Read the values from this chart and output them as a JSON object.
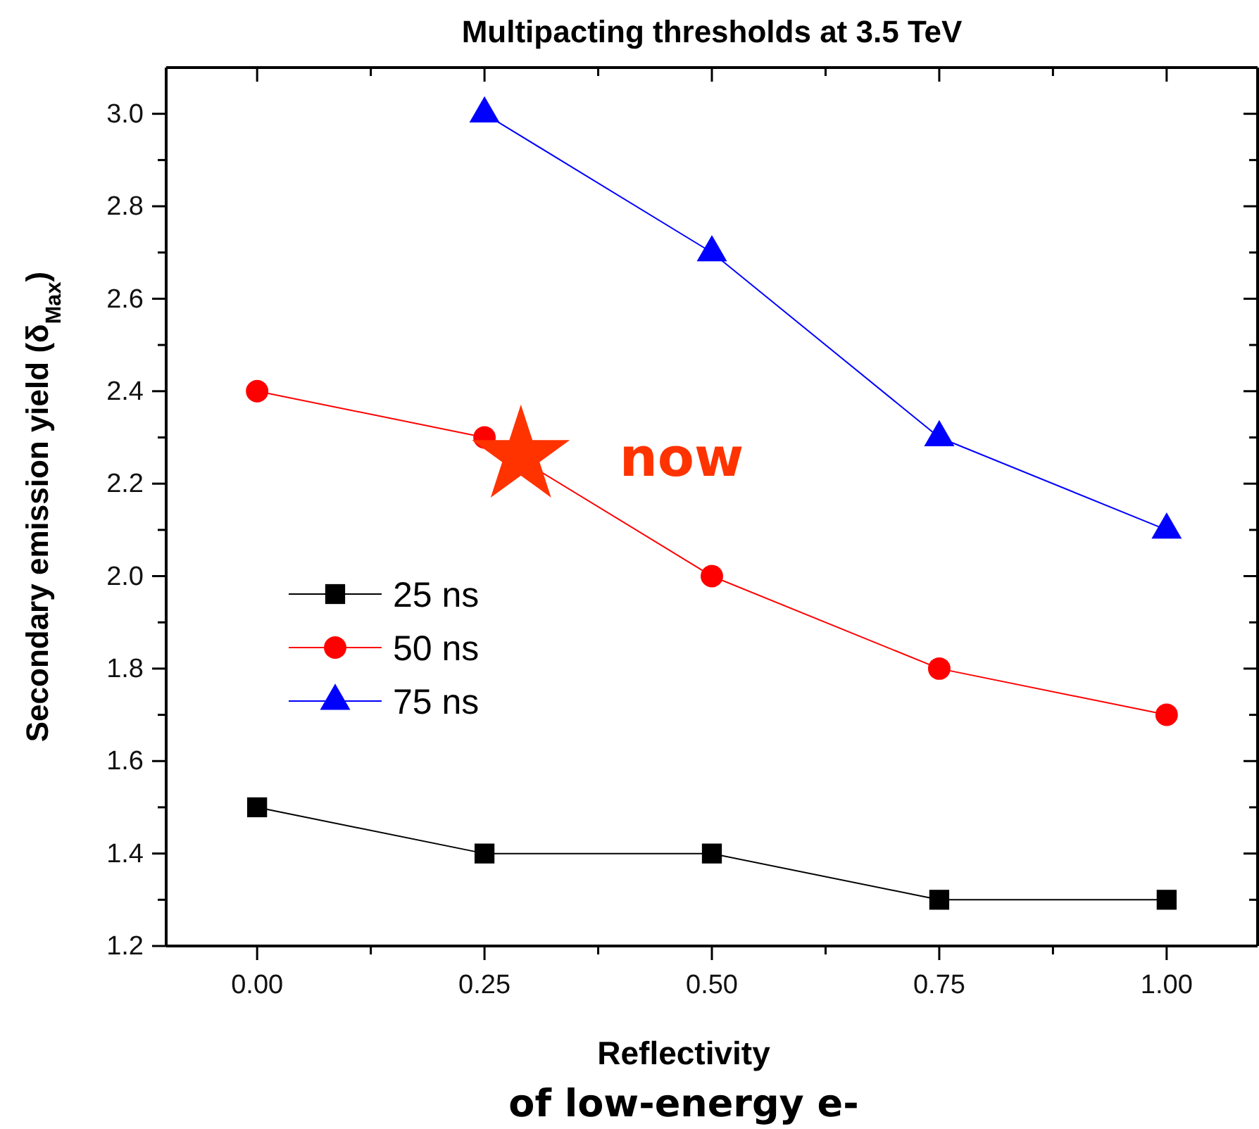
{
  "chart_data": {
    "type": "line",
    "title": "Multipacting thresholds at 3.5 TeV",
    "xlabel": "Reflectivity\nof low-energy e-",
    "ylabel": "Secondary emission yield (δ$_{Max}$)",
    "x": [
      0,
      0.25,
      0.5,
      0.75,
      1
    ],
    "series": [
      {
        "name": "25 ns",
        "color": "#000000",
        "marker": "square",
        "values": [
          1.5,
          1.4,
          1.4,
          1.3,
          1.3
        ]
      },
      {
        "name": "50 ns",
        "color": "#ff0000",
        "marker": "circle",
        "values": [
          2.4,
          2.3,
          2.0,
          1.8,
          1.7
        ]
      },
      {
        "name": "75 ns",
        "color": "#0000ff",
        "marker": "triangle",
        "values": [
          null,
          3.0,
          2.7,
          2.3,
          2.1
        ]
      }
    ],
    "xlim": [
      -0.1,
      1.1
    ],
    "xticks": [
      {
        "value": 0,
        "label": "0.00"
      },
      {
        "value": 0.125,
        "label": null
      },
      {
        "value": 0.25,
        "label": "0.25"
      },
      {
        "value": 0.375,
        "label": null
      },
      {
        "value": 0.5,
        "label": "0.50"
      },
      {
        "value": 0.625,
        "label": null
      },
      {
        "value": 0.75,
        "label": "0.75"
      },
      {
        "value": 0.875,
        "label": null
      },
      {
        "value": 1,
        "label": "1.00"
      }
    ],
    "ylim": [
      1.2,
      3.1
    ],
    "yticks": [
      {
        "value": 1.2,
        "label": "1.2"
      },
      {
        "value": 1.3,
        "label": null
      },
      {
        "value": 1.4,
        "label": "1.4"
      },
      {
        "value": 1.5,
        "label": null
      },
      {
        "value": 1.6,
        "label": "1.6"
      },
      {
        "value": 1.7,
        "label": null
      },
      {
        "value": 1.8,
        "label": "1.8"
      },
      {
        "value": 1.9,
        "label": null
      },
      {
        "value": 2.0,
        "label": "2.0"
      },
      {
        "value": 2.1,
        "label": null
      },
      {
        "value": 2.2,
        "label": "2.2"
      },
      {
        "value": 2.3,
        "label": null
      },
      {
        "value": 2.4,
        "label": "2.4"
      },
      {
        "value": 2.5,
        "label": null
      },
      {
        "value": 2.6,
        "label": "2.6"
      },
      {
        "value": 2.7,
        "label": null
      },
      {
        "value": 2.8,
        "label": "2.8"
      },
      {
        "value": 2.9,
        "label": null
      },
      {
        "value": 3.0,
        "label": "3.0"
      }
    ],
    "annotations": [
      {
        "text": "now",
        "x": 0.29,
        "y": 2.26
      }
    ],
    "legend": "left",
    "grid": false,
    "line_style": "solid"
  }
}
